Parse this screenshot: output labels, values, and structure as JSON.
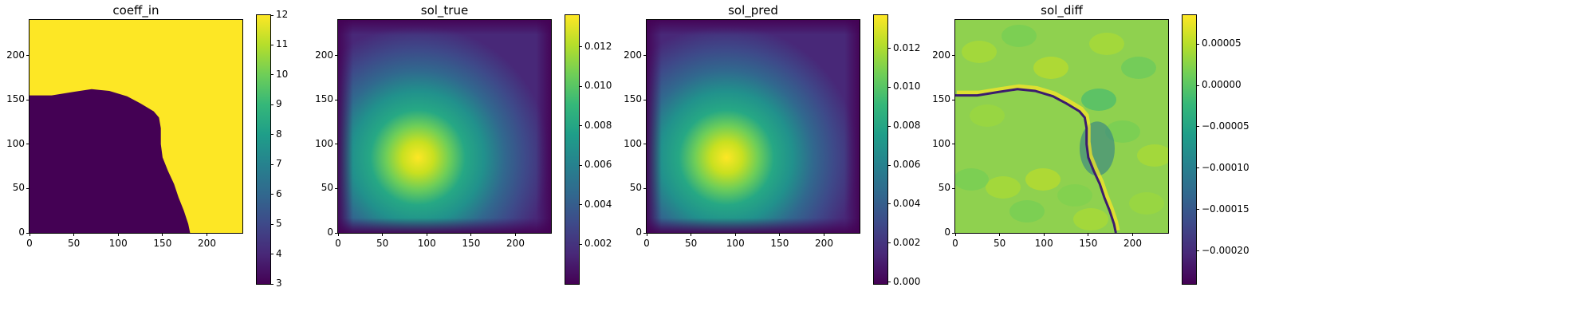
{
  "figure": {
    "panels": [
      {
        "title": "coeff_in",
        "kind": "coeff",
        "xticks": [
          "0",
          "50",
          "100",
          "150",
          "200"
        ],
        "yticks": [
          "0",
          "50",
          "100",
          "150",
          "200"
        ],
        "colorbar": {
          "min": 3,
          "max": 12,
          "ticks": [
            "3",
            "4",
            "5",
            "6",
            "7",
            "8",
            "9",
            "10",
            "11",
            "12"
          ]
        }
      },
      {
        "title": "sol_true",
        "kind": "sol",
        "xticks": [
          "0",
          "50",
          "100",
          "150",
          "200"
        ],
        "yticks": [
          "0",
          "50",
          "100",
          "150",
          "200"
        ],
        "colorbar": {
          "min": 0.0,
          "max": 0.0136,
          "ticks": [
            "0.002",
            "0.004",
            "0.006",
            "0.008",
            "0.010",
            "0.012"
          ]
        }
      },
      {
        "title": "sol_pred",
        "kind": "sol",
        "xticks": [
          "0",
          "50",
          "100",
          "150",
          "200"
        ],
        "yticks": [
          "0",
          "50",
          "100",
          "150",
          "200"
        ],
        "colorbar": {
          "min": -0.0001,
          "max": 0.0137,
          "ticks": [
            "0.000",
            "0.002",
            "0.004",
            "0.006",
            "0.008",
            "0.010",
            "0.012"
          ]
        }
      },
      {
        "title": "sol_diff",
        "kind": "diff",
        "xticks": [
          "0",
          "50",
          "100",
          "150",
          "200"
        ],
        "yticks": [
          "0",
          "50",
          "100",
          "150",
          "200"
        ],
        "colorbar": {
          "min": -0.00024,
          "max": 8.5e-05,
          "ticks": [
            "−0.00020",
            "−0.00015",
            "−0.00010",
            "−0.00005",
            "0.00000",
            "0.00005"
          ]
        }
      }
    ]
  },
  "chart_data": [
    {
      "type": "heatmap",
      "title": "coeff_in",
      "xlim": [
        0,
        240
      ],
      "ylim": [
        0,
        240
      ],
      "colormap": "viridis",
      "value_range": [
        3,
        12
      ],
      "description_values": {
        "lower_left_region": 3,
        "upper_right_region": 12
      },
      "boundary_points": [
        [
          0,
          155
        ],
        [
          25,
          155
        ],
        [
          50,
          159
        ],
        [
          70,
          162
        ],
        [
          90,
          160
        ],
        [
          110,
          154
        ],
        [
          125,
          146
        ],
        [
          140,
          137
        ],
        [
          146,
          130
        ],
        [
          148,
          118
        ],
        [
          148,
          100
        ],
        [
          150,
          85
        ],
        [
          156,
          70
        ],
        [
          163,
          55
        ],
        [
          168,
          40
        ],
        [
          174,
          25
        ],
        [
          179,
          10
        ],
        [
          181,
          0
        ]
      ]
    },
    {
      "type": "heatmap",
      "title": "sol_true",
      "xlim": [
        0,
        240
      ],
      "ylim": [
        0,
        240
      ],
      "colormap": "viridis",
      "value_range": [
        0.0,
        0.0136
      ],
      "peak": {
        "x": 90,
        "y": 85,
        "value": 0.0136
      }
    },
    {
      "type": "heatmap",
      "title": "sol_pred",
      "xlim": [
        0,
        240
      ],
      "ylim": [
        0,
        240
      ],
      "colormap": "viridis",
      "value_range": [
        -0.0001,
        0.0137
      ],
      "peak": {
        "x": 90,
        "y": 85,
        "value": 0.0137
      }
    },
    {
      "type": "heatmap",
      "title": "sol_diff",
      "xlim": [
        0,
        240
      ],
      "ylim": [
        0,
        240
      ],
      "colormap": "viridis",
      "value_range": [
        -0.00024,
        8.5e-05
      ],
      "background_value": -1e-05,
      "interface_min_value": -0.00022,
      "interface_max_value": 8e-05
    }
  ],
  "colors": {
    "viridis": [
      "#440154",
      "#482878",
      "#3e4989",
      "#31688e",
      "#26828e",
      "#1f9e89",
      "#35b779",
      "#6ece58",
      "#b5de2b",
      "#fde725"
    ]
  }
}
